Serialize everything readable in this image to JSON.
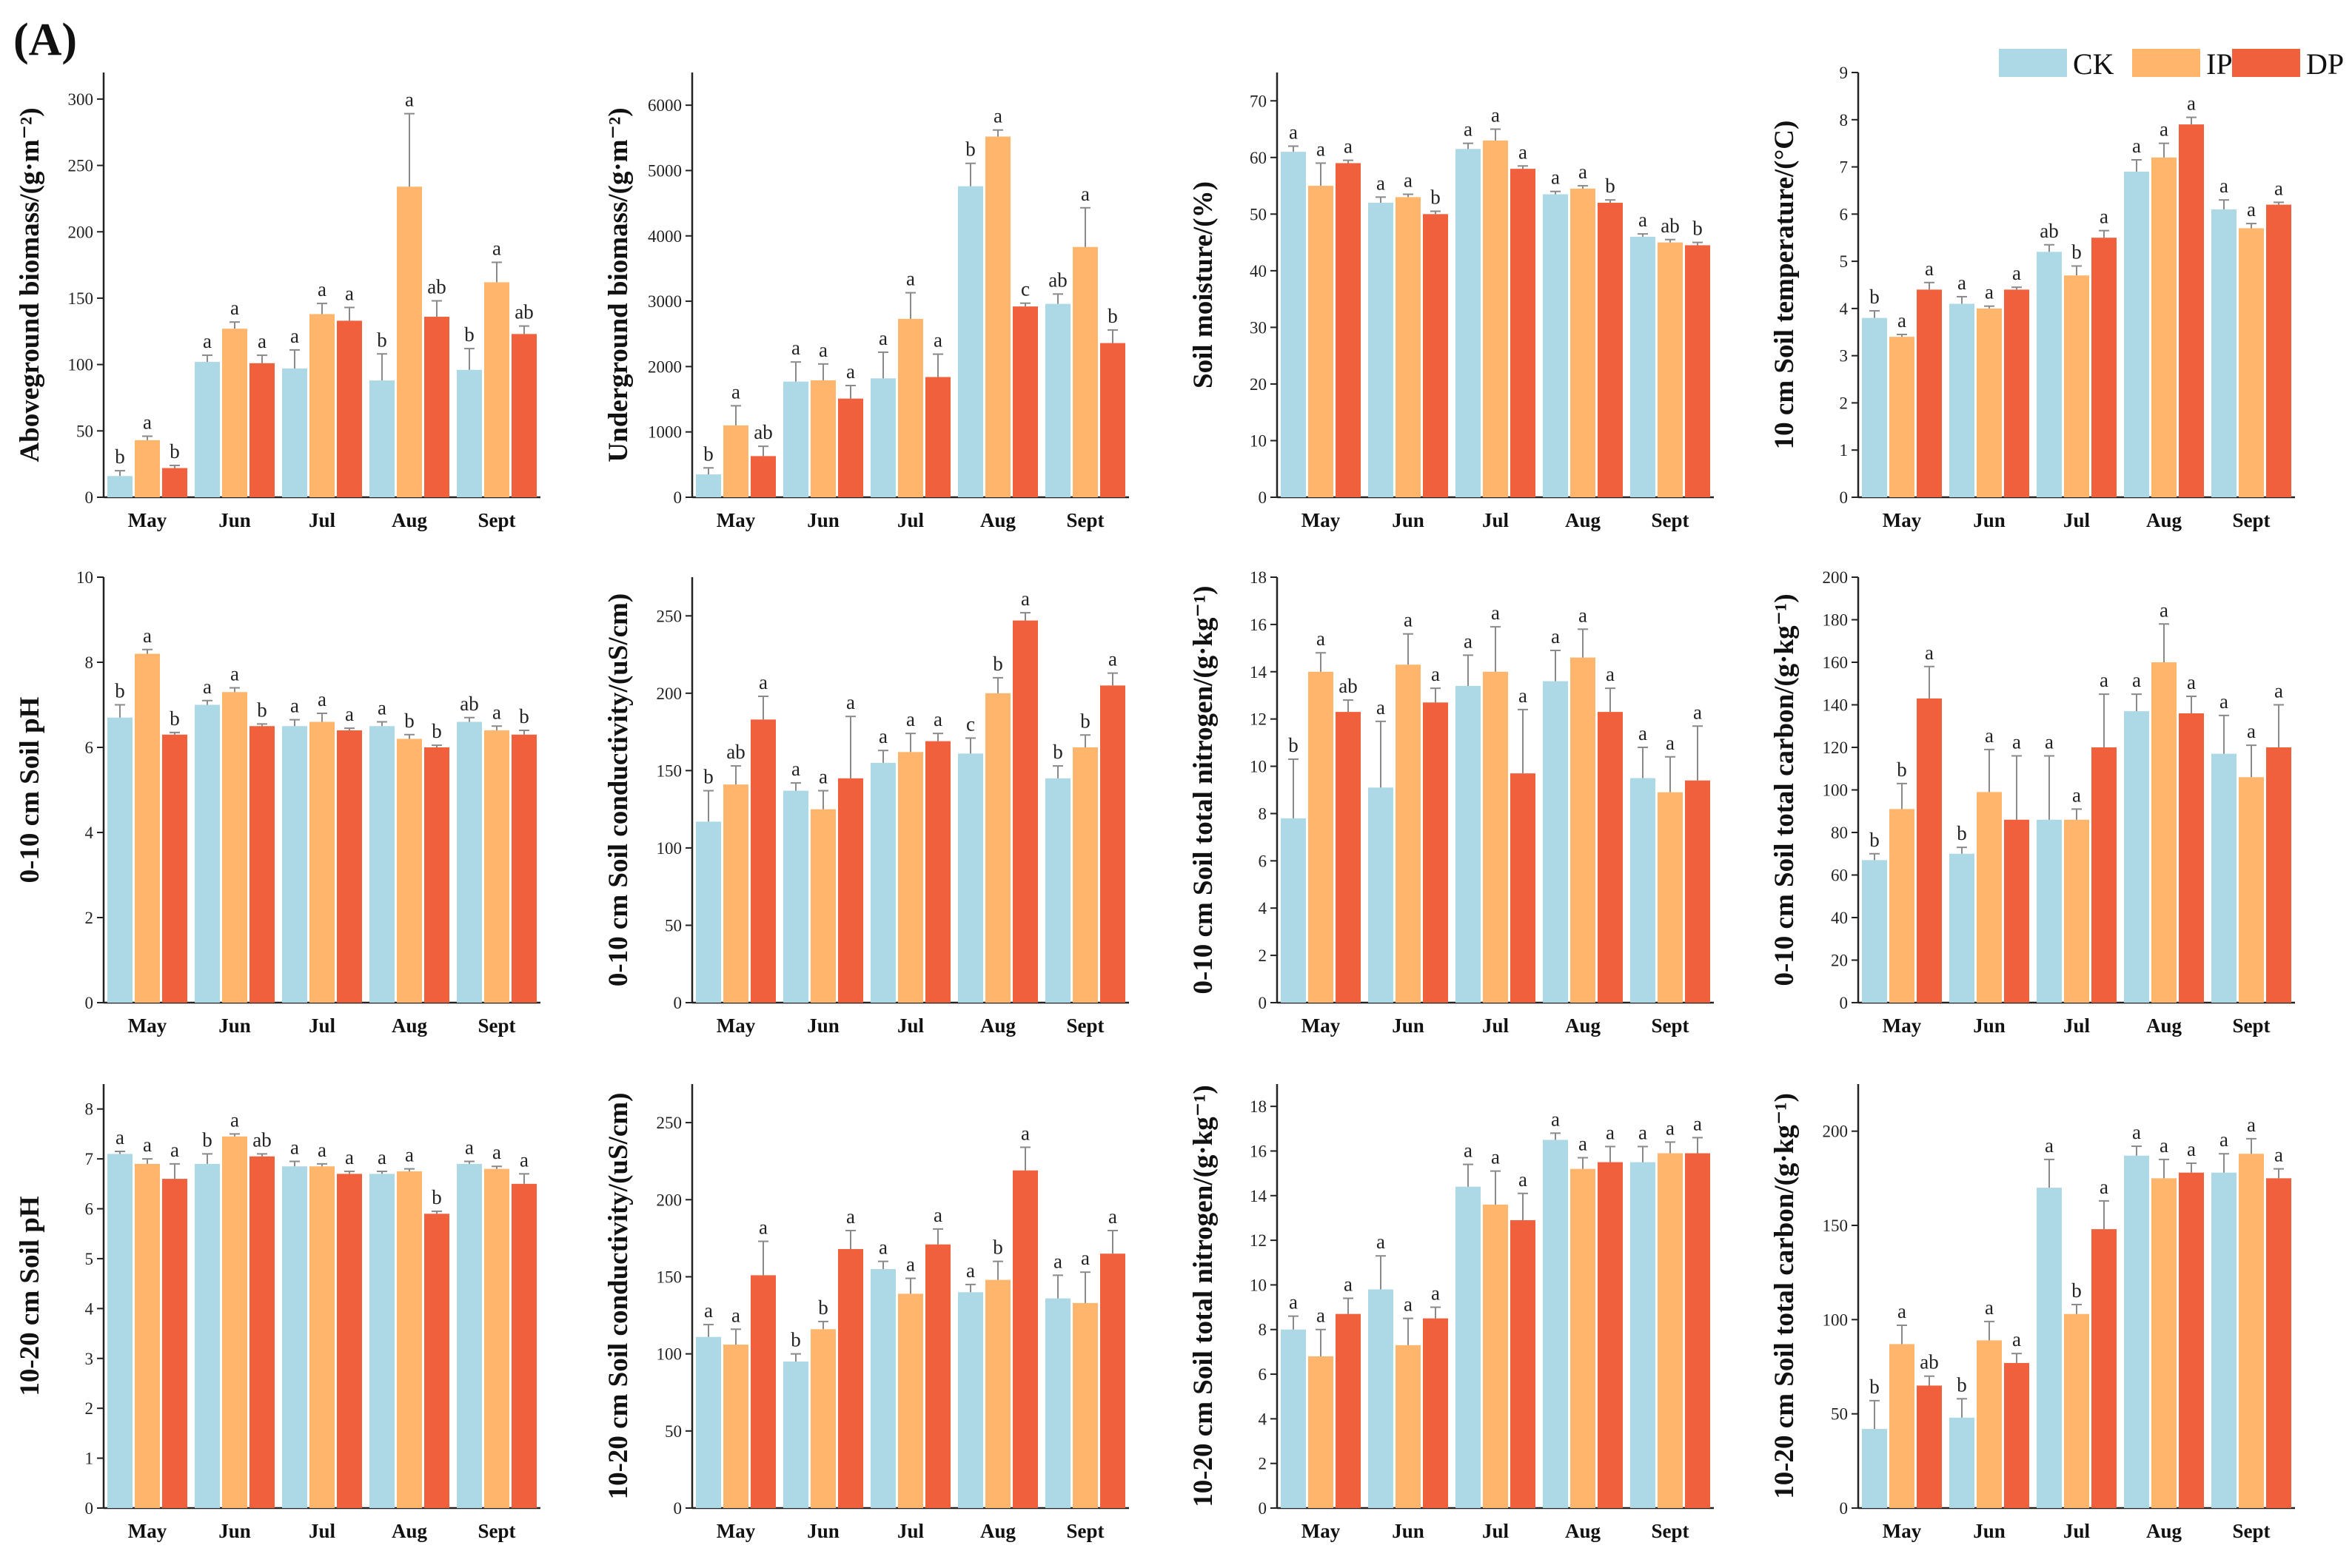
{
  "figure_label": "(A)",
  "colors": {
    "CK": "#add8e6",
    "IP": "#ffb56b",
    "DP": "#f0603d",
    "axis": "#222222",
    "error": "#8a8a8a"
  },
  "legend": [
    "CK",
    "IP",
    "DP"
  ],
  "chart_data": [
    {
      "type": "bar",
      "ylabel": "Aboveground biomass/(g·m⁻²)",
      "categories": [
        "May",
        "Jun",
        "Jul",
        "Aug",
        "Sept"
      ],
      "ylim": [
        0,
        320
      ],
      "yticks": [
        0,
        50,
        100,
        150,
        200,
        250,
        300
      ],
      "series": [
        {
          "name": "CK",
          "values": [
            16,
            102,
            97,
            88,
            96
          ],
          "errors": [
            4,
            5,
            14,
            20,
            16
          ],
          "letters": [
            "b",
            "a",
            "a",
            "b",
            "b"
          ]
        },
        {
          "name": "IP",
          "values": [
            43,
            127,
            138,
            234,
            162
          ],
          "errors": [
            3,
            5,
            8,
            55,
            15
          ],
          "letters": [
            "a",
            "a",
            "a",
            "a",
            "a"
          ]
        },
        {
          "name": "DP",
          "values": [
            22,
            101,
            133,
            136,
            123
          ],
          "errors": [
            2,
            6,
            10,
            12,
            6
          ],
          "letters": [
            "b",
            "a",
            "a",
            "ab",
            "ab"
          ]
        }
      ]
    },
    {
      "type": "bar",
      "ylabel": "Underground biomass/(g·m⁻²)",
      "categories": [
        "May",
        "Jun",
        "Jul",
        "Aug",
        "Sept"
      ],
      "ylim": [
        0,
        6500
      ],
      "yticks": [
        0,
        1000,
        2000,
        3000,
        4000,
        5000,
        6000
      ],
      "series": [
        {
          "name": "CK",
          "values": [
            350,
            1770,
            1820,
            4760,
            2960
          ],
          "errors": [
            100,
            300,
            400,
            350,
            150
          ],
          "letters": [
            "b",
            "a",
            "a",
            "b",
            "ab"
          ]
        },
        {
          "name": "IP",
          "values": [
            1100,
            1790,
            2730,
            5520,
            3830
          ],
          "errors": [
            300,
            250,
            400,
            100,
            600
          ],
          "letters": [
            "a",
            "a",
            "a",
            "a",
            "a"
          ]
        },
        {
          "name": "DP",
          "values": [
            630,
            1510,
            1840,
            2920,
            2360
          ],
          "errors": [
            150,
            200,
            350,
            50,
            200
          ],
          "letters": [
            "ab",
            "a",
            "a",
            "c",
            "b"
          ]
        }
      ]
    },
    {
      "type": "bar",
      "ylabel": "Soil moisture/(%)",
      "categories": [
        "May",
        "Jun",
        "Jul",
        "Aug",
        "Sept"
      ],
      "ylim": [
        0,
        75
      ],
      "yticks": [
        0,
        10,
        20,
        30,
        40,
        50,
        60,
        70
      ],
      "series": [
        {
          "name": "CK",
          "values": [
            61,
            52,
            61.5,
            53.5,
            46
          ],
          "errors": [
            1,
            1,
            1,
            0.5,
            0.5
          ],
          "letters": [
            "a",
            "a",
            "a",
            "a",
            "a"
          ]
        },
        {
          "name": "IP",
          "values": [
            55,
            53,
            63,
            54.5,
            45
          ],
          "errors": [
            4,
            0.5,
            2,
            0.5,
            0.5
          ],
          "letters": [
            "a",
            "a",
            "a",
            "a",
            "ab"
          ]
        },
        {
          "name": "DP",
          "values": [
            59,
            50,
            58,
            52,
            44.5
          ],
          "errors": [
            0.5,
            0.5,
            0.5,
            0.5,
            0.5
          ],
          "letters": [
            "a",
            "b",
            "a",
            "b",
            "b"
          ]
        }
      ]
    },
    {
      "type": "bar",
      "ylabel": "10 cm Soil temperature/(°C)",
      "categories": [
        "May",
        "Jun",
        "Jul",
        "Aug",
        "Sept"
      ],
      "ylim": [
        0,
        9
      ],
      "yticks": [
        0,
        1,
        2,
        3,
        4,
        5,
        6,
        7,
        8,
        9
      ],
      "series": [
        {
          "name": "CK",
          "values": [
            3.8,
            4.1,
            5.2,
            6.9,
            6.1
          ],
          "errors": [
            0.15,
            0.15,
            0.15,
            0.25,
            0.2
          ],
          "letters": [
            "b",
            "a",
            "ab",
            "a",
            "a"
          ]
        },
        {
          "name": "IP",
          "values": [
            3.4,
            4.0,
            4.7,
            7.2,
            5.7
          ],
          "errors": [
            0.05,
            0.05,
            0.2,
            0.3,
            0.1
          ],
          "letters": [
            "a",
            "a",
            "b",
            "a",
            "a"
          ]
        },
        {
          "name": "DP",
          "values": [
            4.4,
            4.4,
            5.5,
            7.9,
            6.2
          ],
          "errors": [
            0.15,
            0.05,
            0.15,
            0.15,
            0.05
          ],
          "letters": [
            "a",
            "a",
            "a",
            "a",
            "a"
          ]
        }
      ]
    },
    {
      "type": "bar",
      "ylabel": "0-10 cm Soil pH",
      "categories": [
        "May",
        "Jun",
        "Jul",
        "Aug",
        "Sept"
      ],
      "ylim": [
        0,
        10
      ],
      "yticks": [
        0,
        2,
        4,
        6,
        8,
        10
      ],
      "series": [
        {
          "name": "CK",
          "values": [
            6.7,
            7.0,
            6.5,
            6.5,
            6.6
          ],
          "errors": [
            0.3,
            0.1,
            0.15,
            0.1,
            0.1
          ],
          "letters": [
            "b",
            "a",
            "a",
            "a",
            "ab"
          ]
        },
        {
          "name": "IP",
          "values": [
            8.2,
            7.3,
            6.6,
            6.2,
            6.4
          ],
          "errors": [
            0.1,
            0.1,
            0.2,
            0.1,
            0.1
          ],
          "letters": [
            "a",
            "a",
            "a",
            "b",
            "a"
          ]
        },
        {
          "name": "DP",
          "values": [
            6.3,
            6.5,
            6.4,
            6.0,
            6.3
          ],
          "errors": [
            0.05,
            0.05,
            0.05,
            0.05,
            0.1
          ],
          "letters": [
            "b",
            "b",
            "a",
            "b",
            "b"
          ]
        }
      ]
    },
    {
      "type": "bar",
      "ylabel": "0-10 cm Soil conductivity/(uS/cm)",
      "categories": [
        "May",
        "Jun",
        "Jul",
        "Aug",
        "Sept"
      ],
      "ylim": [
        0,
        275
      ],
      "yticks": [
        0,
        50,
        100,
        150,
        200,
        250
      ],
      "series": [
        {
          "name": "CK",
          "values": [
            117,
            137,
            155,
            161,
            145
          ],
          "errors": [
            20,
            5,
            8,
            10,
            8
          ],
          "letters": [
            "b",
            "a",
            "a",
            "c",
            "b"
          ]
        },
        {
          "name": "IP",
          "values": [
            141,
            125,
            162,
            200,
            165
          ],
          "errors": [
            12,
            12,
            12,
            10,
            8
          ],
          "letters": [
            "ab",
            "a",
            "a",
            "b",
            "b"
          ]
        },
        {
          "name": "DP",
          "values": [
            183,
            145,
            169,
            247,
            205
          ],
          "errors": [
            15,
            40,
            5,
            5,
            8
          ],
          "letters": [
            "a",
            "a",
            "a",
            "a",
            "a"
          ]
        }
      ]
    },
    {
      "type": "bar",
      "ylabel": "0-10 cm Soil total nitrogen/(g·kg⁻¹)",
      "categories": [
        "May",
        "Jun",
        "Jul",
        "Aug",
        "Sept"
      ],
      "ylim": [
        0,
        18
      ],
      "yticks": [
        0,
        2,
        4,
        6,
        8,
        10,
        12,
        14,
        16,
        18
      ],
      "series": [
        {
          "name": "CK",
          "values": [
            7.8,
            9.1,
            13.4,
            13.6,
            9.5
          ],
          "errors": [
            2.5,
            2.8,
            1.3,
            1.3,
            1.3
          ],
          "letters": [
            "b",
            "a",
            "a",
            "a",
            "a"
          ]
        },
        {
          "name": "IP",
          "values": [
            14.0,
            14.3,
            14.0,
            14.6,
            8.9
          ],
          "errors": [
            0.8,
            1.3,
            1.9,
            1.2,
            1.5
          ],
          "letters": [
            "a",
            "a",
            "a",
            "a",
            "a"
          ]
        },
        {
          "name": "DP",
          "values": [
            12.3,
            12.7,
            9.7,
            12.3,
            9.4
          ],
          "errors": [
            0.5,
            0.6,
            2.7,
            1.0,
            2.3
          ],
          "letters": [
            "ab",
            "a",
            "a",
            "a",
            "a"
          ]
        }
      ]
    },
    {
      "type": "bar",
      "ylabel": "0-10 cm Soil total carbon/(g·kg⁻¹)",
      "categories": [
        "May",
        "Jun",
        "Jul",
        "Aug",
        "Sept"
      ],
      "ylim": [
        0,
        200
      ],
      "yticks": [
        0,
        20,
        40,
        60,
        80,
        100,
        120,
        140,
        160,
        180,
        200
      ],
      "series": [
        {
          "name": "CK",
          "values": [
            67,
            70,
            86,
            137,
            117
          ],
          "errors": [
            3,
            3,
            30,
            8,
            18
          ],
          "letters": [
            "b",
            "b",
            "a",
            "a",
            "a"
          ]
        },
        {
          "name": "IP",
          "values": [
            91,
            99,
            86,
            160,
            106
          ],
          "errors": [
            12,
            20,
            5,
            18,
            15
          ],
          "letters": [
            "b",
            "a",
            "a",
            "a",
            "a"
          ]
        },
        {
          "name": "DP",
          "values": [
            143,
            86,
            120,
            136,
            120
          ],
          "errors": [
            15,
            30,
            25,
            8,
            20
          ],
          "letters": [
            "a",
            "a",
            "a",
            "a",
            "a"
          ]
        }
      ]
    },
    {
      "type": "bar",
      "ylabel": "10-20 cm Soil pH",
      "categories": [
        "May",
        "Jun",
        "Jul",
        "Aug",
        "Sept"
      ],
      "ylim": [
        0,
        8.5
      ],
      "yticks": [
        0,
        1,
        2,
        3,
        4,
        5,
        6,
        7,
        8
      ],
      "series": [
        {
          "name": "CK",
          "values": [
            7.1,
            6.9,
            6.85,
            6.7,
            6.9
          ],
          "errors": [
            0.05,
            0.2,
            0.1,
            0.05,
            0.05
          ],
          "letters": [
            "a",
            "b",
            "a",
            "a",
            "a"
          ]
        },
        {
          "name": "IP",
          "values": [
            6.9,
            7.45,
            6.85,
            6.75,
            6.8
          ],
          "errors": [
            0.1,
            0.05,
            0.05,
            0.05,
            0.05
          ],
          "letters": [
            "a",
            "a",
            "a",
            "a",
            "a"
          ]
        },
        {
          "name": "DP",
          "values": [
            6.6,
            7.05,
            6.7,
            5.9,
            6.5
          ],
          "errors": [
            0.3,
            0.05,
            0.05,
            0.05,
            0.2
          ],
          "letters": [
            "a",
            "ab",
            "a",
            "b",
            "a"
          ]
        }
      ]
    },
    {
      "type": "bar",
      "ylabel": "10-20 cm Soil conductivity/(uS/cm)",
      "categories": [
        "May",
        "Jun",
        "Jul",
        "Aug",
        "Sept"
      ],
      "ylim": [
        0,
        275
      ],
      "yticks": [
        0,
        50,
        100,
        150,
        200,
        250
      ],
      "series": [
        {
          "name": "CK",
          "values": [
            111,
            95,
            155,
            140,
            136
          ],
          "errors": [
            8,
            5,
            5,
            5,
            15
          ],
          "letters": [
            "a",
            "b",
            "a",
            "a",
            "a"
          ]
        },
        {
          "name": "IP",
          "values": [
            106,
            116,
            139,
            148,
            133
          ],
          "errors": [
            10,
            5,
            10,
            12,
            20
          ],
          "letters": [
            "a",
            "b",
            "a",
            "b",
            "a"
          ]
        },
        {
          "name": "DP",
          "values": [
            151,
            168,
            171,
            219,
            165
          ],
          "errors": [
            22,
            12,
            10,
            15,
            15
          ],
          "letters": [
            "a",
            "a",
            "a",
            "a",
            "a"
          ]
        }
      ]
    },
    {
      "type": "bar",
      "ylabel": "10-20 cm Soil total nitrogen/(g·kg⁻¹)",
      "categories": [
        "May",
        "Jun",
        "Jul",
        "Aug",
        "Sept"
      ],
      "ylim": [
        0,
        19
      ],
      "yticks": [
        0,
        2,
        4,
        6,
        8,
        10,
        12,
        14,
        16,
        18
      ],
      "series": [
        {
          "name": "CK",
          "values": [
            8.0,
            9.8,
            14.4,
            16.5,
            15.5
          ],
          "errors": [
            0.6,
            1.5,
            1.0,
            0.3,
            0.7
          ],
          "letters": [
            "a",
            "a",
            "a",
            "a",
            "a"
          ]
        },
        {
          "name": "IP",
          "values": [
            6.8,
            7.3,
            13.6,
            15.2,
            15.9
          ],
          "errors": [
            1.2,
            1.2,
            1.5,
            0.5,
            0.5
          ],
          "letters": [
            "a",
            "a",
            "a",
            "a",
            "a"
          ]
        },
        {
          "name": "DP",
          "values": [
            8.7,
            8.5,
            12.9,
            15.5,
            15.9
          ],
          "errors": [
            0.7,
            0.5,
            1.2,
            0.7,
            0.7
          ],
          "letters": [
            "a",
            "a",
            "a",
            "a",
            "a"
          ]
        }
      ]
    },
    {
      "type": "bar",
      "ylabel": "10-20 cm Soil total carbon/(g·kg⁻¹)",
      "categories": [
        "May",
        "Jun",
        "Jul",
        "Aug",
        "Sept"
      ],
      "ylim": [
        0,
        225
      ],
      "yticks": [
        0,
        50,
        100,
        150,
        200
      ],
      "series": [
        {
          "name": "CK",
          "values": [
            42,
            48,
            170,
            187,
            178
          ],
          "errors": [
            15,
            10,
            15,
            5,
            10
          ],
          "letters": [
            "b",
            "b",
            "a",
            "a",
            "a"
          ]
        },
        {
          "name": "IP",
          "values": [
            87,
            89,
            103,
            175,
            188
          ],
          "errors": [
            10,
            10,
            5,
            10,
            8
          ],
          "letters": [
            "a",
            "a",
            "b",
            "a",
            "a"
          ]
        },
        {
          "name": "DP",
          "values": [
            65,
            77,
            148,
            178,
            175
          ],
          "errors": [
            5,
            5,
            15,
            5,
            5
          ],
          "letters": [
            "ab",
            "a",
            "a",
            "a",
            "a"
          ]
        }
      ]
    }
  ]
}
